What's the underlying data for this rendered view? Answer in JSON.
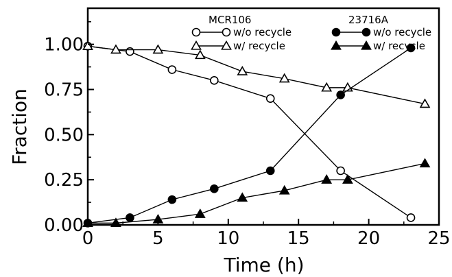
{
  "chart_data": {
    "type": "scatter",
    "title": "",
    "xlabel": "Time (h)",
    "ylabel": "Fraction",
    "xlim": [
      0,
      25
    ],
    "ylim": [
      0,
      1.2
    ],
    "x_ticks": [
      0,
      5,
      10,
      15,
      20,
      25
    ],
    "x_tick_labels": [
      "0",
      "5",
      "10",
      "15",
      "20",
      "25"
    ],
    "y_ticks": [
      0,
      0.25,
      0.5,
      0.75,
      1.0
    ],
    "y_tick_labels": [
      "0.00",
      "0.25",
      "0.50",
      "0.75",
      "1.00"
    ],
    "grid": false,
    "legend_placement": "top",
    "legend_groups": [
      {
        "header": "MCR106",
        "entries": [
          "w/o recycle",
          "w/ recycle"
        ]
      },
      {
        "header": "23716A",
        "entries": [
          "w/o recycle",
          "w/ recycle"
        ]
      }
    ],
    "series": [
      {
        "group": "MCR106",
        "name": "w/o recycle",
        "marker": "circle",
        "filled": false,
        "x": [
          0,
          3,
          6,
          9,
          13,
          18,
          23
        ],
        "y": [
          0.99,
          0.96,
          0.86,
          0.8,
          0.7,
          0.3,
          0.04
        ]
      },
      {
        "group": "MCR106",
        "name": "w/ recycle",
        "marker": "triangle",
        "filled": false,
        "x": [
          0,
          2,
          5,
          8,
          11,
          14,
          17,
          18.5,
          24
        ],
        "y": [
          0.99,
          0.97,
          0.97,
          0.94,
          0.85,
          0.81,
          0.76,
          0.76,
          0.67
        ]
      },
      {
        "group": "23716A",
        "name": "w/o recycle",
        "marker": "circle",
        "filled": true,
        "x": [
          0,
          3,
          6,
          9,
          13,
          18,
          23
        ],
        "y": [
          0.01,
          0.04,
          0.14,
          0.2,
          0.3,
          0.72,
          0.98
        ]
      },
      {
        "group": "23716A",
        "name": "w/ recycle",
        "marker": "triangle",
        "filled": true,
        "x": [
          0,
          2,
          5,
          8,
          11,
          14,
          17,
          18.5,
          24
        ],
        "y": [
          0.01,
          0.01,
          0.03,
          0.06,
          0.15,
          0.19,
          0.25,
          0.25,
          0.34
        ]
      }
    ]
  }
}
